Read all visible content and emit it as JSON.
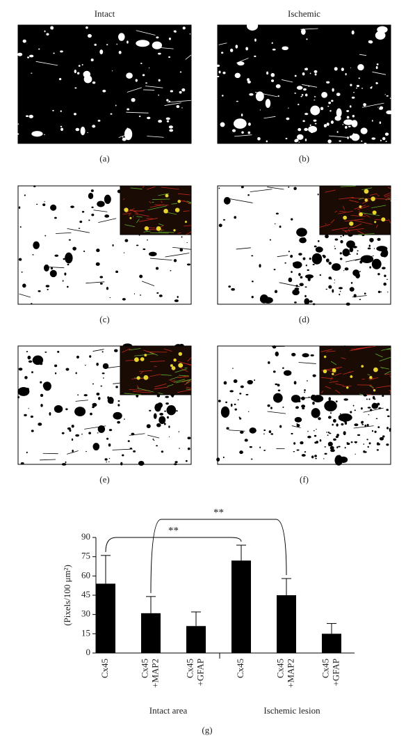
{
  "panels": [
    {
      "label": "(a)",
      "title": "Intact"
    },
    {
      "label": "(b)",
      "title": "Ischemic"
    },
    {
      "label": "(c)"
    },
    {
      "label": "(d)"
    },
    {
      "label": "(e)"
    },
    {
      "label": "(f)"
    }
  ],
  "chart_data": {
    "type": "bar",
    "label": "(g)",
    "y_label": "(Pixels/100 μm²)",
    "categories": [
      [
        "Cx45"
      ],
      [
        "Cx45",
        "+MAP2"
      ],
      [
        "Cx45",
        "+GFAP"
      ],
      [
        "Cx45"
      ],
      [
        "Cx45",
        "+MAP2"
      ],
      [
        "Cx45",
        "+GFAP"
      ]
    ],
    "groups": [
      "Intact area",
      "Ischemic lesion"
    ],
    "values": [
      54,
      31,
      21,
      72,
      45,
      15
    ],
    "errors": [
      22,
      13,
      11,
      12,
      13,
      8
    ],
    "color": "#000000",
    "ylim": [
      0,
      90
    ],
    "yticks": [
      0,
      15,
      30,
      45,
      60,
      75,
      90
    ],
    "annotations": [
      "**",
      "**"
    ]
  }
}
